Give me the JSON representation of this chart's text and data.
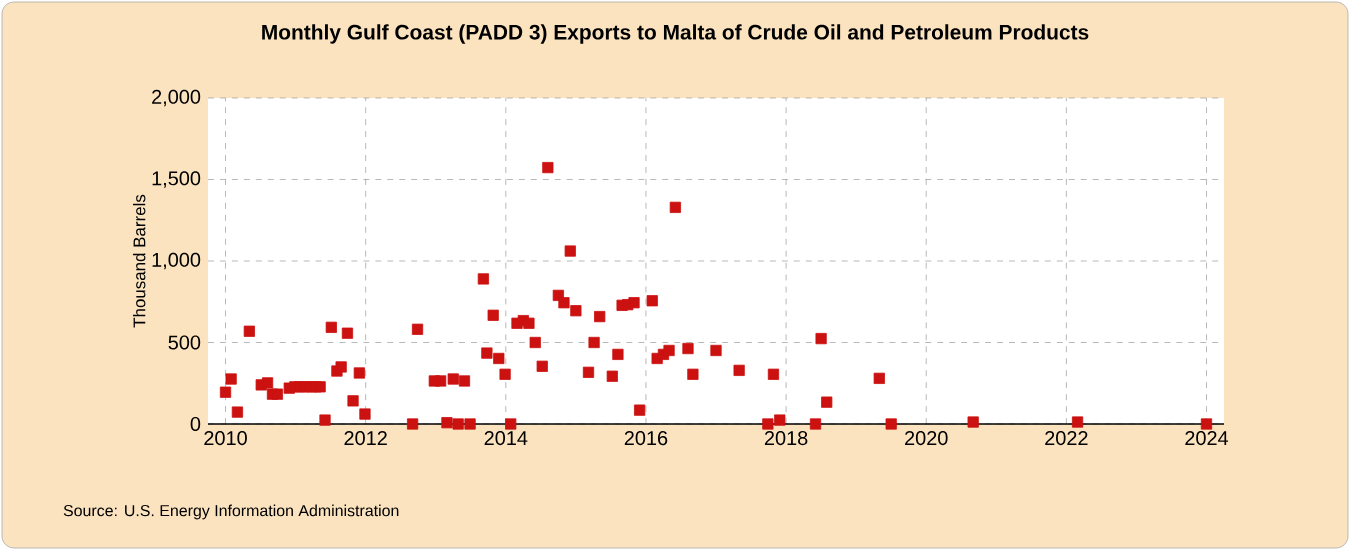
{
  "chart_data": {
    "type": "scatter",
    "title": "Monthly Gulf Coast (PADD 3) Exports to Malta of Crude Oil and Petroleum Products",
    "ylabel": "Thousand Barrels",
    "annotations": [
      "Source: U.S. Energy Information Administration"
    ],
    "x": [
      2010.0,
      2010.08,
      2010.17,
      2010.34,
      2010.51,
      2010.6,
      2010.67,
      2010.74,
      2010.91,
      2010.99,
      2011.06,
      2011.14,
      2011.22,
      2011.29,
      2011.35,
      2011.42,
      2011.51,
      2011.59,
      2011.65,
      2011.74,
      2011.82,
      2011.91,
      2011.99,
      2012.67,
      2012.74,
      2012.98,
      2013.07,
      2013.16,
      2013.25,
      2013.32,
      2013.41,
      2013.49,
      2013.68,
      2013.73,
      2013.82,
      2013.9,
      2013.99,
      2014.07,
      2014.16,
      2014.25,
      2014.33,
      2014.42,
      2014.52,
      2014.6,
      2014.75,
      2014.83,
      2014.92,
      2015.0,
      2015.18,
      2015.26,
      2015.34,
      2015.52,
      2015.6,
      2015.66,
      2015.74,
      2015.83,
      2015.91,
      2016.09,
      2016.16,
      2016.25,
      2016.33,
      2016.42,
      2016.6,
      2016.67,
      2017.0,
      2017.33,
      2017.74,
      2017.82,
      2017.91,
      2018.42,
      2018.5,
      2018.58,
      2019.33,
      2019.5,
      2020.67,
      2022.16,
      2024.0
    ],
    "values": [
      195,
      276,
      73,
      569,
      240,
      252,
      183,
      183,
      220,
      228,
      228,
      228,
      228,
      228,
      228,
      24,
      593,
      325,
      350,
      557,
      142,
      313,
      61,
      0,
      581,
      264,
      264,
      8,
      276,
      0,
      264,
      0,
      890,
      435,
      667,
      402,
      305,
      0,
      618,
      634,
      618,
      500,
      354,
      1573,
      789,
      744,
      1061,
      695,
      317,
      500,
      659,
      293,
      427,
      728,
      732,
      744,
      85,
      756,
      402,
      427,
      451,
      1329,
      463,
      305,
      451,
      329,
      0,
      305,
      24,
      0,
      524,
      134,
      280,
      0,
      12,
      12,
      0
    ],
    "color": "#cc1111",
    "marker": "square",
    "grid": true,
    "xlim": [
      2009.75,
      2024.25
    ],
    "xticks": [
      2010,
      2012,
      2014,
      2016,
      2018,
      2020,
      2022,
      2024
    ],
    "ylim": [
      0,
      2000
    ],
    "yticks": [
      0,
      {
        "value": 500,
        "label": "500"
      },
      {
        "value": 1000,
        "label": "1,000"
      },
      {
        "value": 1500,
        "label": "1,500"
      },
      {
        "value": 2000,
        "label": "2,000"
      }
    ]
  }
}
